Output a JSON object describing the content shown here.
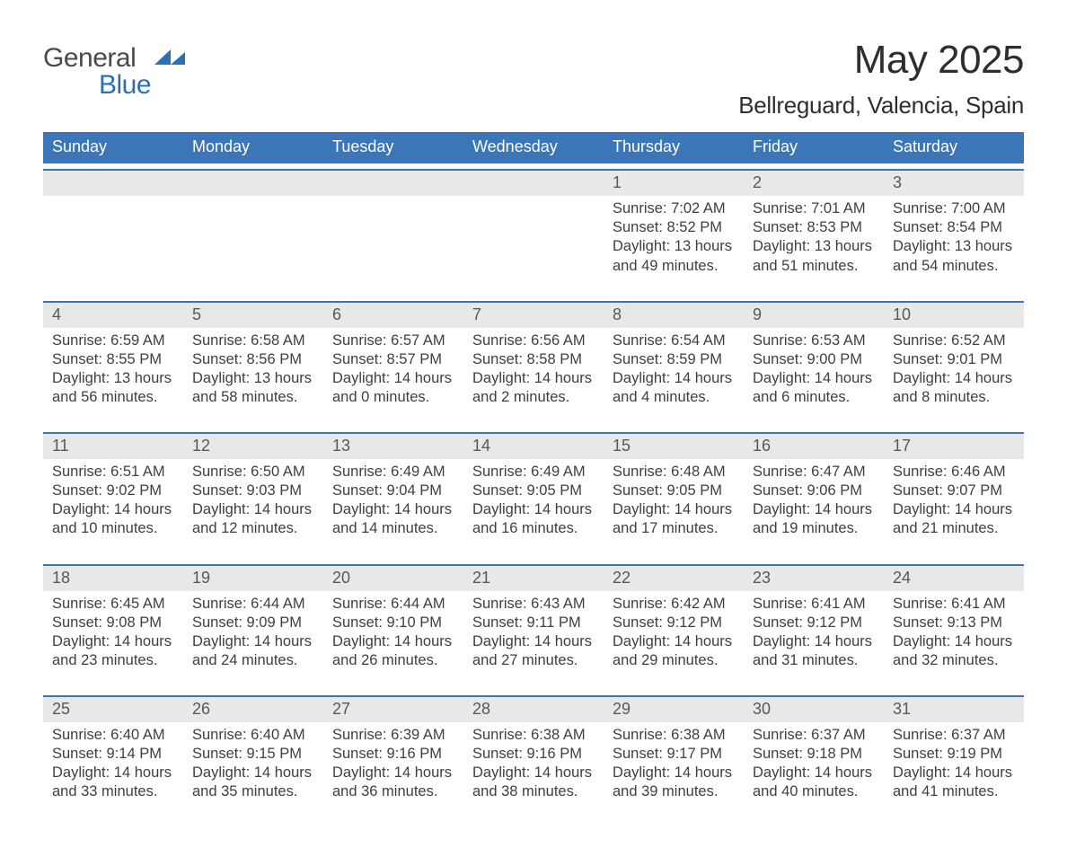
{
  "brand": {
    "word1": "General",
    "word2": "Blue",
    "text_color": "#4a4a4a",
    "accent_color": "#2d6fb7"
  },
  "header": {
    "month_title": "May 2025",
    "location": "Bellreguard, Valencia, Spain"
  },
  "styling": {
    "page_background": "#ffffff",
    "header_bar_color": "#3b77b8",
    "header_text_color": "#ffffff",
    "cell_rule_color": "#3b77b8",
    "daynum_bg": "#e8e8e8",
    "daynum_color": "#585858",
    "body_text_color": "#3f3f3f",
    "title_fontsize_pt": 33,
    "location_fontsize_pt": 20,
    "weekday_fontsize_pt": 13,
    "daynum_fontsize_pt": 13,
    "body_fontsize_pt": 12,
    "columns": 7,
    "rows": 5
  },
  "labels": {
    "sunrise_label": "Sunrise:",
    "sunset_label": "Sunset:",
    "daylight_label": "Daylight:"
  },
  "weekdays": [
    "Sunday",
    "Monday",
    "Tuesday",
    "Wednesday",
    "Thursday",
    "Friday",
    "Saturday"
  ],
  "first_weekday_index": 4,
  "days": [
    {
      "n": "1",
      "sunrise": "7:02 AM",
      "sunset": "8:52 PM",
      "daylight": "13 hours and 49 minutes."
    },
    {
      "n": "2",
      "sunrise": "7:01 AM",
      "sunset": "8:53 PM",
      "daylight": "13 hours and 51 minutes."
    },
    {
      "n": "3",
      "sunrise": "7:00 AM",
      "sunset": "8:54 PM",
      "daylight": "13 hours and 54 minutes."
    },
    {
      "n": "4",
      "sunrise": "6:59 AM",
      "sunset": "8:55 PM",
      "daylight": "13 hours and 56 minutes."
    },
    {
      "n": "5",
      "sunrise": "6:58 AM",
      "sunset": "8:56 PM",
      "daylight": "13 hours and 58 minutes."
    },
    {
      "n": "6",
      "sunrise": "6:57 AM",
      "sunset": "8:57 PM",
      "daylight": "14 hours and 0 minutes."
    },
    {
      "n": "7",
      "sunrise": "6:56 AM",
      "sunset": "8:58 PM",
      "daylight": "14 hours and 2 minutes."
    },
    {
      "n": "8",
      "sunrise": "6:54 AM",
      "sunset": "8:59 PM",
      "daylight": "14 hours and 4 minutes."
    },
    {
      "n": "9",
      "sunrise": "6:53 AM",
      "sunset": "9:00 PM",
      "daylight": "14 hours and 6 minutes."
    },
    {
      "n": "10",
      "sunrise": "6:52 AM",
      "sunset": "9:01 PM",
      "daylight": "14 hours and 8 minutes."
    },
    {
      "n": "11",
      "sunrise": "6:51 AM",
      "sunset": "9:02 PM",
      "daylight": "14 hours and 10 minutes."
    },
    {
      "n": "12",
      "sunrise": "6:50 AM",
      "sunset": "9:03 PM",
      "daylight": "14 hours and 12 minutes."
    },
    {
      "n": "13",
      "sunrise": "6:49 AM",
      "sunset": "9:04 PM",
      "daylight": "14 hours and 14 minutes."
    },
    {
      "n": "14",
      "sunrise": "6:49 AM",
      "sunset": "9:05 PM",
      "daylight": "14 hours and 16 minutes."
    },
    {
      "n": "15",
      "sunrise": "6:48 AM",
      "sunset": "9:05 PM",
      "daylight": "14 hours and 17 minutes."
    },
    {
      "n": "16",
      "sunrise": "6:47 AM",
      "sunset": "9:06 PM",
      "daylight": "14 hours and 19 minutes."
    },
    {
      "n": "17",
      "sunrise": "6:46 AM",
      "sunset": "9:07 PM",
      "daylight": "14 hours and 21 minutes."
    },
    {
      "n": "18",
      "sunrise": "6:45 AM",
      "sunset": "9:08 PM",
      "daylight": "14 hours and 23 minutes."
    },
    {
      "n": "19",
      "sunrise": "6:44 AM",
      "sunset": "9:09 PM",
      "daylight": "14 hours and 24 minutes."
    },
    {
      "n": "20",
      "sunrise": "6:44 AM",
      "sunset": "9:10 PM",
      "daylight": "14 hours and 26 minutes."
    },
    {
      "n": "21",
      "sunrise": "6:43 AM",
      "sunset": "9:11 PM",
      "daylight": "14 hours and 27 minutes."
    },
    {
      "n": "22",
      "sunrise": "6:42 AM",
      "sunset": "9:12 PM",
      "daylight": "14 hours and 29 minutes."
    },
    {
      "n": "23",
      "sunrise": "6:41 AM",
      "sunset": "9:12 PM",
      "daylight": "14 hours and 31 minutes."
    },
    {
      "n": "24",
      "sunrise": "6:41 AM",
      "sunset": "9:13 PM",
      "daylight": "14 hours and 32 minutes."
    },
    {
      "n": "25",
      "sunrise": "6:40 AM",
      "sunset": "9:14 PM",
      "daylight": "14 hours and 33 minutes."
    },
    {
      "n": "26",
      "sunrise": "6:40 AM",
      "sunset": "9:15 PM",
      "daylight": "14 hours and 35 minutes."
    },
    {
      "n": "27",
      "sunrise": "6:39 AM",
      "sunset": "9:16 PM",
      "daylight": "14 hours and 36 minutes."
    },
    {
      "n": "28",
      "sunrise": "6:38 AM",
      "sunset": "9:16 PM",
      "daylight": "14 hours and 38 minutes."
    },
    {
      "n": "29",
      "sunrise": "6:38 AM",
      "sunset": "9:17 PM",
      "daylight": "14 hours and 39 minutes."
    },
    {
      "n": "30",
      "sunrise": "6:37 AM",
      "sunset": "9:18 PM",
      "daylight": "14 hours and 40 minutes."
    },
    {
      "n": "31",
      "sunrise": "6:37 AM",
      "sunset": "9:19 PM",
      "daylight": "14 hours and 41 minutes."
    }
  ]
}
